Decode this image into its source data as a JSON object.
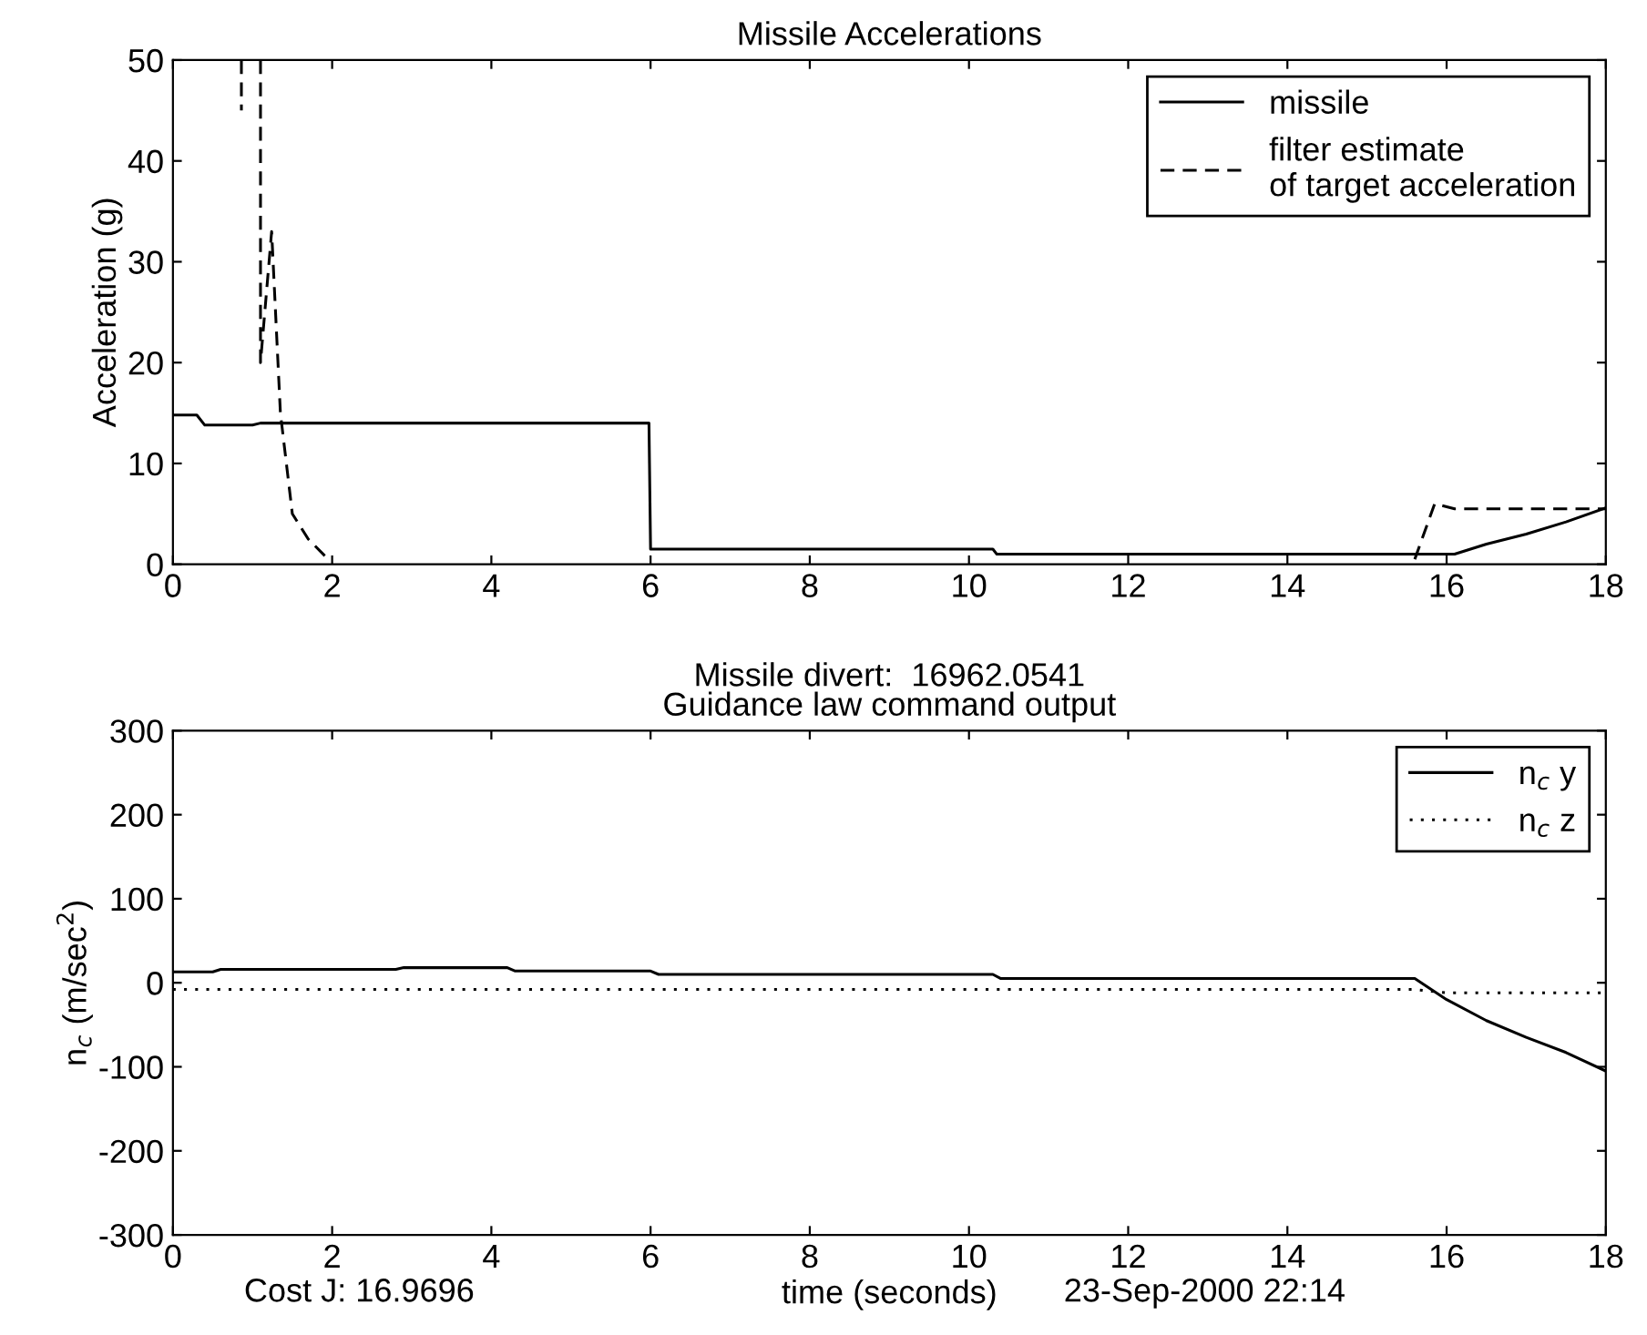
{
  "chart_data": [
    {
      "type": "line",
      "title": "Missile Accelerations",
      "ylabel": "Acceleration (g)",
      "xlim": [
        0,
        18
      ],
      "ylim": [
        0,
        50
      ],
      "xticks": [
        0,
        2,
        4,
        6,
        8,
        10,
        12,
        14,
        16,
        18
      ],
      "yticks": [
        0,
        10,
        20,
        30,
        40,
        50
      ],
      "grid": false,
      "legend": "top right",
      "series": [
        {
          "name": "missile",
          "color": "#000000",
          "line_style": "solid",
          "x": [
            0,
            0.3,
            0.4,
            1.0,
            1.1,
            5.98,
            6.0,
            10.3,
            10.35,
            15.6,
            16.1,
            16.5,
            17.0,
            17.5,
            18
          ],
          "values": [
            14.8,
            14.8,
            13.8,
            13.8,
            14,
            14,
            1.5,
            1.5,
            1.0,
            1.0,
            1.0,
            2.0,
            3.0,
            4.2,
            5.6
          ]
        },
        {
          "name": "filter estimate\nof target acceleration",
          "color": "#000000",
          "line_style": "dashed",
          "x": [
            0.86,
            0.86,
            0.9,
            1.1,
            1.1,
            1.24,
            1.35,
            1.5,
            1.7,
            1.95,
            2.0,
            15.6,
            15.85,
            16.1,
            18
          ],
          "values": [
            50,
            45,
            null,
            50,
            20,
            33,
            15,
            5,
            2.5,
            0.5,
            null,
            0.5,
            6,
            5.5,
            5.5
          ]
        }
      ]
    },
    {
      "type": "line",
      "title": "Guidance law command output",
      "subtitle": "Missile divert:  16962.0541",
      "xlabel": "time (seconds)",
      "ylabel": "n$_{c}$ (m/sec$^{2}$)",
      "xlim": [
        0,
        18
      ],
      "ylim": [
        -300,
        300
      ],
      "xticks": [
        0,
        2,
        4,
        6,
        8,
        10,
        12,
        14,
        16,
        18
      ],
      "yticks": [
        -300,
        -200,
        -100,
        0,
        100,
        200,
        300
      ],
      "grid": false,
      "legend": "top right",
      "annotations": [
        "Cost J: 16.9696",
        "23-Sep-2000 22:14"
      ],
      "series": [
        {
          "name": "n$_{c}$ y",
          "color": "#000000",
          "line_style": "solid",
          "x": [
            0,
            0.5,
            0.6,
            2.8,
            2.9,
            4.2,
            4.3,
            6.0,
            6.1,
            10.3,
            10.4,
            15.6,
            16.0,
            16.5,
            17.0,
            17.5,
            18
          ],
          "values": [
            13,
            13,
            16,
            16,
            18,
            18,
            14,
            14,
            10,
            10,
            5,
            5,
            -20,
            -45,
            -65,
            -83,
            -105
          ]
        },
        {
          "name": "n$_{c}$ z",
          "color": "#000000",
          "line_style": "dotted",
          "x": [
            0,
            15.6,
            16.0,
            18
          ],
          "values": [
            -8,
            -8,
            -12,
            -12
          ]
        }
      ]
    }
  ]
}
